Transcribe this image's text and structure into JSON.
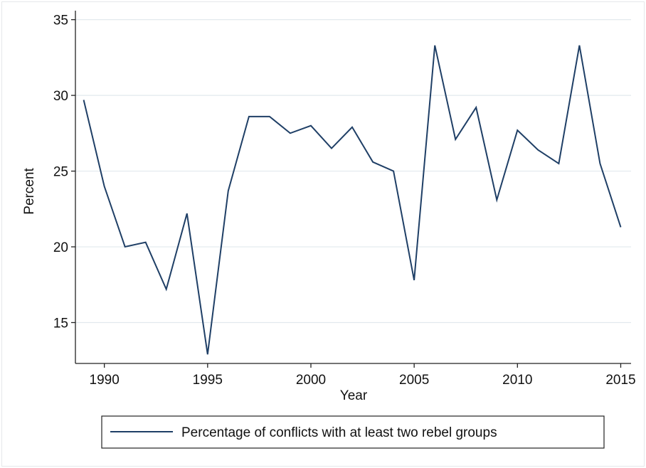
{
  "chart_data": {
    "type": "line",
    "title": "",
    "xlabel": "Year",
    "ylabel": "Percent",
    "xlim": [
      1988.6,
      2015.5
    ],
    "ylim": [
      12.3,
      35.5
    ],
    "x_ticks": [
      1990,
      1995,
      2000,
      2005,
      2010,
      2015
    ],
    "y_ticks": [
      15,
      20,
      25,
      30,
      35
    ],
    "grid": true,
    "legend_position": "bottom",
    "x": [
      1989,
      1990,
      1991,
      1992,
      1993,
      1994,
      1995,
      1996,
      1997,
      1998,
      1999,
      2000,
      2001,
      2002,
      2003,
      2004,
      2005,
      2006,
      2007,
      2008,
      2009,
      2010,
      2011,
      2012,
      2013,
      2014,
      2015
    ],
    "series": [
      {
        "name": "Percentage of conflicts with at least two rebel groups",
        "color": "#1f3f66",
        "values": [
          29.7,
          24.0,
          20.0,
          20.3,
          17.2,
          22.2,
          12.9,
          23.7,
          28.6,
          28.6,
          27.5,
          28.0,
          26.5,
          27.9,
          25.6,
          25.0,
          17.8,
          33.3,
          27.1,
          29.2,
          23.1,
          27.7,
          26.4,
          25.5,
          33.3,
          25.5,
          21.3
        ]
      }
    ]
  }
}
